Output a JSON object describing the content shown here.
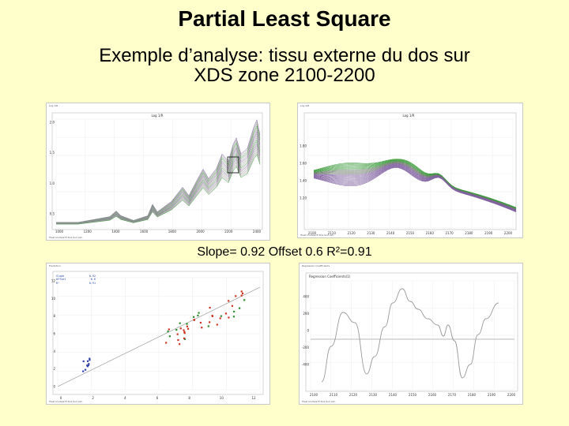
{
  "slide": {
    "title": "Partial Least Square",
    "subtitle_line1": "Exemple d’analyse: tissu externe du dos sur",
    "subtitle_line2": "XDS zone 2100-2200",
    "caption": "Slope= 0.92 Offset 0.6 R²=0.91"
  },
  "panels": {
    "spectra_full": {
      "plot_title": "Log 1/R",
      "window_label": "Log 1/R",
      "y_ticks": [
        "2.0",
        "1.5",
        "1.0",
        "0.5"
      ],
      "x_ticks": [
        "1000",
        "1200",
        "1400",
        "1600",
        "1800",
        "2000",
        "2200",
        "2400"
      ],
      "footer": "Treat modele ft Dos Sud ext."
    },
    "spectra_zoom": {
      "plot_title": "Log 1/R",
      "window_label": "Log 1/R",
      "y_ticks": [
        "1.80",
        "1.60",
        "1.40",
        "1.20"
      ],
      "x_ticks": [
        "2100",
        "2110",
        "2120",
        "2130",
        "2140",
        "2150",
        "2160",
        "2170",
        "2180",
        "2190",
        "2200"
      ],
      "footer": "Treat modele ft Dos Sud ext."
    },
    "scatter": {
      "window_label": "Prediction",
      "stats": [
        {
          "k": "Slope",
          "v": "0.92"
        },
        {
          "k": "Offset",
          "v": "0.6"
        },
        {
          "k": "R²",
          "v": "0.91"
        }
      ],
      "x_ticks": [
        "0",
        "2",
        "4",
        "6",
        "8",
        "10",
        "12"
      ],
      "y_ticks": [
        "12",
        "10",
        "8",
        "6",
        "4",
        "2",
        "0"
      ],
      "footer": "Treat modele ft Dos Sud ext."
    },
    "regression": {
      "plot_title": "Regression Coefficients(1)",
      "window_label": "Regression Coefficients",
      "x_ticks": [
        "2100",
        "2110",
        "2120",
        "2130",
        "2140",
        "2150",
        "2160",
        "2170",
        "2180",
        "2190",
        "2200"
      ],
      "y_ticks": [
        "400",
        "200",
        "0",
        "-200",
        "-400"
      ],
      "footer": "Treat modele ft Dos Sud ext."
    }
  },
  "colors": {
    "background": "#ffffcc",
    "spectra_gray": "#9a9a9a",
    "spectra_purple": "#8060a0",
    "spectra_green": "#3a9a3a",
    "scatter_green": "#2e8b2e",
    "scatter_red": "#cc3322",
    "scatter_blue": "#3344aa",
    "grid": "#e8e8e8"
  }
}
